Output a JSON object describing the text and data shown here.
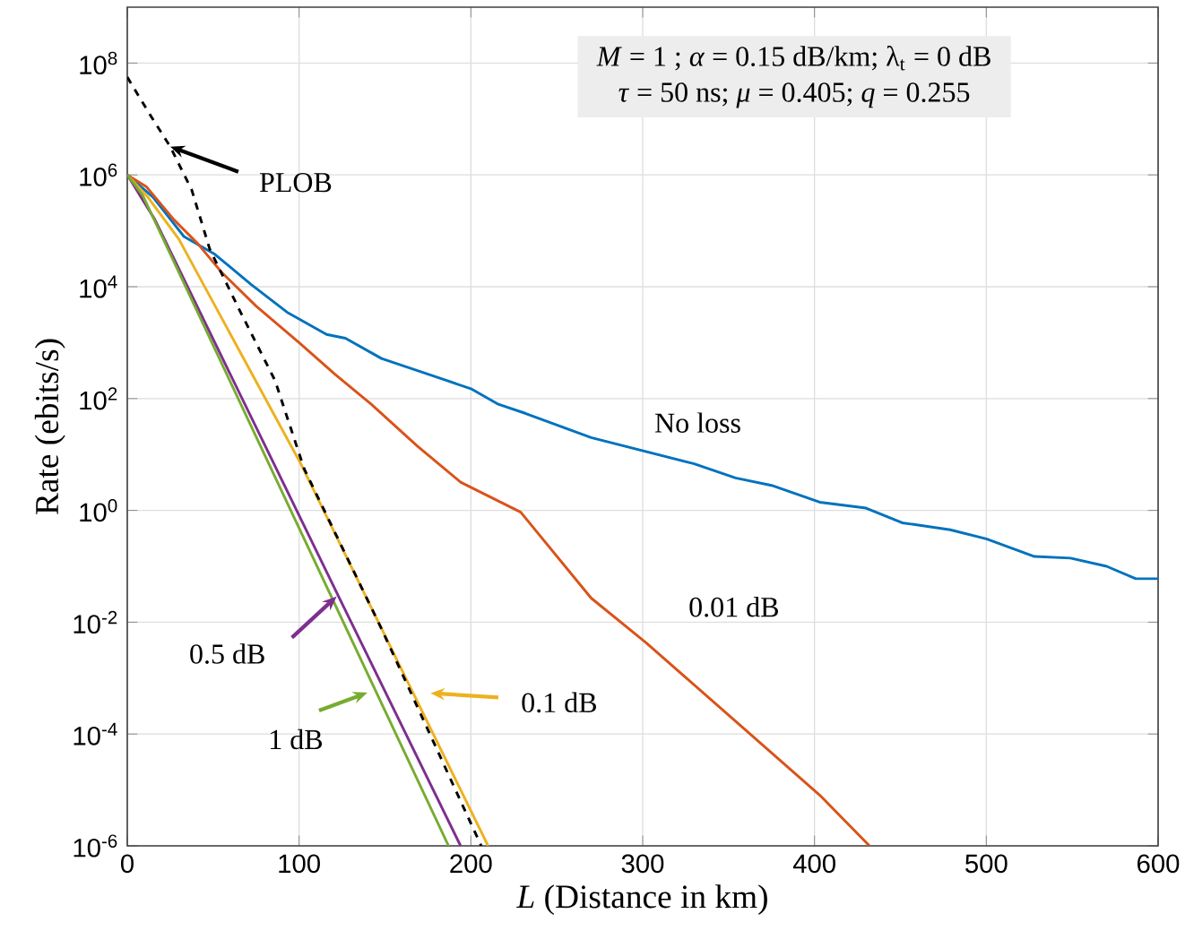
{
  "chart_data": {
    "type": "line",
    "xlabel": "*L* (Distance in km)",
    "ylabel": "Rate (ebits/s)",
    "xlim": [
      0,
      600
    ],
    "xticks": [
      0,
      100,
      200,
      300,
      400,
      500,
      600
    ],
    "ylim": [
      1e-06,
      1000000000.0
    ],
    "log": "y",
    "yticks": [
      {
        "value": 1e-06,
        "label": "10$^{-6}$"
      },
      {
        "value": 0.0001,
        "label": "10$^{-4}$"
      },
      {
        "value": 0.01,
        "label": "10$^{-2}$"
      },
      {
        "value": 1,
        "label": "10$^{0}$"
      },
      {
        "value": 100,
        "label": "10$^{2}$"
      },
      {
        "value": 10000.0,
        "label": "10$^{4}$"
      },
      {
        "value": 1000000.0,
        "label": "10$^{6}$"
      },
      {
        "value": 100000000.0,
        "label": "10$^{8}$"
      }
    ],
    "grid": true,
    "marker": "none",
    "series": [
      {
        "color": "#0072bd",
        "x": [
          0,
          15,
          33,
          51,
          72,
          93,
          116,
          127,
          148,
          184,
          200,
          216,
          232,
          270,
          330,
          354,
          375,
          403,
          430,
          451,
          479,
          500,
          528,
          549,
          570,
          587,
          600
        ],
        "values": [
          1000000.0,
          400000.0,
          79000.0,
          38000.0,
          11000.0,
          3500.0,
          1400.0,
          1200.0,
          520,
          220,
          150,
          79,
          54,
          20,
          6.8,
          3.8,
          2.8,
          1.4,
          1.1,
          0.6,
          0.45,
          0.31,
          0.15,
          0.14,
          0.1,
          0.06,
          0.06
        ]
      },
      {
        "color": "#d95319",
        "x": [
          0,
          11,
          27,
          41,
          55,
          75,
          100,
          121,
          142,
          169,
          194,
          229,
          270,
          302,
          361,
          403,
          432
        ],
        "values": [
          1000000.0,
          620000.0,
          160000.0,
          59000.0,
          18000.0,
          4500.0,
          1000.0,
          270,
          79,
          14,
          3.2,
          0.93,
          0.027,
          0.0043,
          0.00011,
          8.1e-06,
          1e-06
        ]
      },
      {
        "color": "#edb120",
        "x": [
          0,
          12,
          30,
          101,
          210
        ],
        "values": [
          1000000.0,
          400000.0,
          71000.0,
          6.8,
          1e-06
        ]
      },
      {
        "color": "#7e2f8e",
        "x": [
          0,
          16,
          124,
          194
        ],
        "values": [
          1000000.0,
          160000.0,
          0.025,
          1e-06
        ]
      },
      {
        "color": "#77ac30",
        "x": [
          0,
          9,
          100,
          187
        ],
        "values": [
          1000000.0,
          430000.0,
          0.48,
          1e-06
        ]
      },
      {
        "color": "#000000",
        "line_style": "dashed",
        "x": [
          0,
          12.5,
          25,
          37.5,
          48,
          65,
          86,
          103,
          148,
          206
        ],
        "values": [
          56000000.0,
          13000000.0,
          3200000.0,
          540000.0,
          47000.0,
          4000.0,
          210,
          5.5,
          0.0076,
          1e-06
        ]
      }
    ],
    "annotations": [
      "*M* = 1 ; *α* = 0.15 dB/km; λ$_{t}$ = 0 dB",
      "*τ* =  50 ns; *μ* = 0.405; *q* = 0.255",
      {
        "text": "PLOB",
        "x": 25,
        "y": 3200000.0
      },
      {
        "text": "No loss",
        "x": 330,
        "y": 6.8
      },
      {
        "text": "0.01 dB",
        "x": 302,
        "y": 0.0043
      },
      {
        "text": "0.5 dB",
        "x": 124,
        "y": 0.025
      },
      {
        "text": "1 dB",
        "x": 145,
        "y": 0.00055
      },
      "0.1 dB"
    ]
  }
}
